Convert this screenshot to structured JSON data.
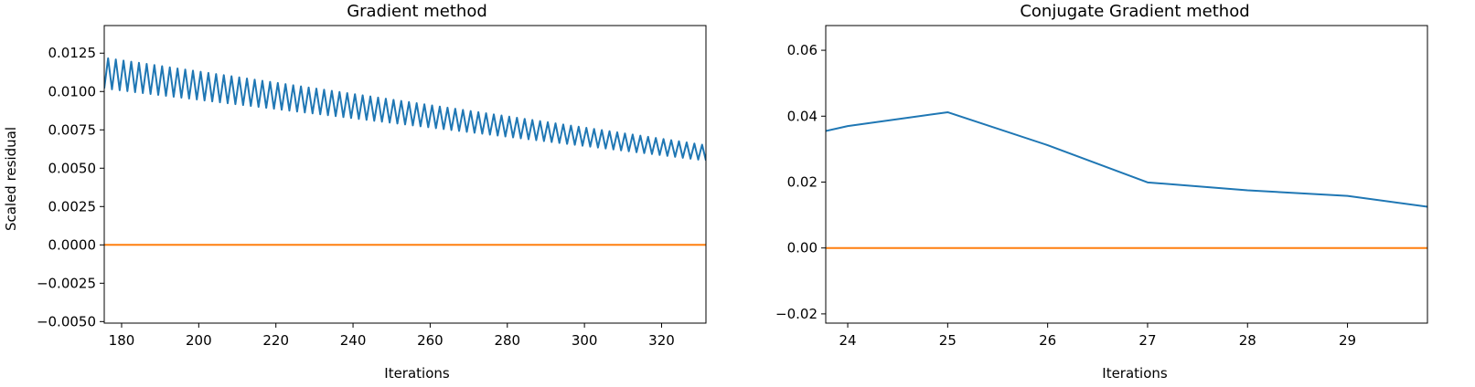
{
  "chart_data": [
    {
      "type": "line",
      "title": "Gradient method",
      "xlabel": "Iterations",
      "ylabel": "Scaled residual",
      "xlim": [
        175.5,
        331.5
      ],
      "ylim": [
        -0.0051,
        0.0143
      ],
      "xticks": [
        180,
        200,
        220,
        240,
        260,
        280,
        300,
        320
      ],
      "xtick_labels": [
        "180",
        "200",
        "220",
        "240",
        "260",
        "280",
        "300",
        "320"
      ],
      "yticks": [
        -0.005,
        -0.0025,
        0.0,
        0.0025,
        0.005,
        0.0075,
        0.01,
        0.0125
      ],
      "ytick_labels": [
        "−0.0050",
        "−0.0025",
        "0.0000",
        "0.0025",
        "0.0050",
        "0.0075",
        "0.0100",
        "0.0125"
      ],
      "grid": false,
      "series": [
        {
          "color": "#1f77b4",
          "description_of_shape": "zig-zag alternating each iteration",
          "x_start": 175.5,
          "x_end": 331.5,
          "x_step": 1,
          "upper_envelope": [
            [
              175.5,
              0.0122
            ],
            [
              331.5,
              0.0065
            ]
          ],
          "lower_envelope": [
            [
              175.5,
              0.0102
            ],
            [
              331.5,
              0.0055
            ]
          ]
        },
        {
          "color": "#ff7f0e",
          "x": [
            175.5,
            331.5
          ],
          "y": [
            0.0,
            0.0
          ]
        }
      ]
    },
    {
      "type": "line",
      "title": "Conjugate Gradient method",
      "xlabel": "Iterations",
      "ylabel": "",
      "xlim": [
        23.78,
        29.8
      ],
      "ylim": [
        -0.0228,
        0.0675
      ],
      "xticks": [
        24,
        25,
        26,
        27,
        28,
        29
      ],
      "xtick_labels": [
        "24",
        "25",
        "26",
        "27",
        "28",
        "29"
      ],
      "yticks": [
        -0.02,
        0.0,
        0.02,
        0.04,
        0.06
      ],
      "ytick_labels": [
        "−0.02",
        "0.00",
        "0.02",
        "0.04",
        "0.06"
      ],
      "grid": false,
      "series": [
        {
          "color": "#1f77b4",
          "x": [
            23.78,
            24.0,
            25.0,
            26.0,
            27.0,
            28.0,
            29.0,
            29.8
          ],
          "y": [
            0.0355,
            0.037,
            0.0412,
            0.0312,
            0.0199,
            0.0175,
            0.0158,
            0.0125
          ]
        },
        {
          "color": "#ff7f0e",
          "x": [
            23.78,
            29.8
          ],
          "y": [
            0.0,
            0.0
          ]
        }
      ]
    }
  ]
}
